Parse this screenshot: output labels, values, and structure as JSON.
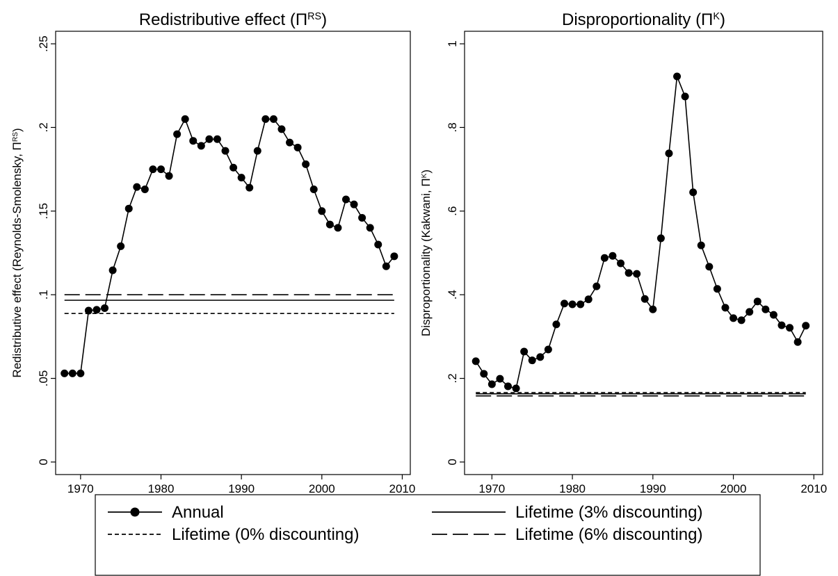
{
  "chart_data": [
    {
      "type": "line",
      "title": [
        {
          "text": "Redistributive effect (Π"
        },
        {
          "text": "RS",
          "superscript": true
        },
        {
          "text": ")"
        }
      ],
      "y_label": [
        {
          "text": "Redistributive effect (Reynolds-Smolensky, Π"
        },
        {
          "text": "RS",
          "superscript": true
        },
        {
          "text": ")"
        }
      ],
      "x": [
        1968,
        1969,
        1970,
        1971,
        1972,
        1973,
        1974,
        1975,
        1976,
        1977,
        1978,
        1979,
        1980,
        1981,
        1982,
        1983,
        1984,
        1985,
        1986,
        1987,
        1988,
        1989,
        1990,
        1991,
        1992,
        1993,
        1994,
        1995,
        1996,
        1997,
        1998,
        1999,
        2000,
        2001,
        2002,
        2003,
        2004,
        2005,
        2006,
        2007,
        2008,
        2009
      ],
      "series": [
        {
          "values": [
            0.053,
            0.053,
            0.053,
            0.0905,
            0.091,
            0.092,
            0.1146,
            0.129,
            0.1515,
            0.1644,
            0.163,
            0.175,
            0.175,
            0.171,
            0.196,
            0.205,
            0.192,
            0.189,
            0.193,
            0.193,
            0.186,
            0.176,
            0.17,
            0.164,
            0.186,
            0.205,
            0.205,
            0.199,
            0.191,
            0.188,
            0.178,
            0.163,
            0.15,
            0.142,
            0.14,
            0.157,
            0.154,
            0.146,
            0.14,
            0.13,
            0.117,
            0.123
          ]
        },
        {
          "value": 0.0967
        },
        {
          "value": 0.0888
        },
        {
          "value": 0.1
        }
      ],
      "xlim": [
        1966.9,
        2011
      ],
      "xticks": [
        1970,
        1980,
        1990,
        2000,
        2010
      ],
      "ylim": [
        -0.0075,
        0.2575
      ],
      "yticks": [
        0,
        {
          "value": 0.05,
          "label": ".05"
        },
        {
          "value": 0.1,
          "label": ".1"
        },
        {
          "value": 0.15,
          "label": ".15"
        },
        {
          "value": 0.2,
          "label": ".2"
        },
        {
          "value": 0.25,
          "label": ".25"
        }
      ]
    },
    {
      "type": "line",
      "title": [
        {
          "text": "Disproportionality (Π"
        },
        {
          "text": "K",
          "superscript": true
        },
        {
          "text": ")"
        }
      ],
      "y_label": [
        {
          "text": "Disproportionality (Kakwani, Π"
        },
        {
          "text": "K",
          "superscript": true
        },
        {
          "text": ")"
        }
      ],
      "x": [
        1968,
        1969,
        1970,
        1971,
        1972,
        1973,
        1974,
        1975,
        1976,
        1977,
        1978,
        1979,
        1980,
        1981,
        1982,
        1983,
        1984,
        1985,
        1986,
        1987,
        1988,
        1989,
        1990,
        1991,
        1992,
        1993,
        1994,
        1995,
        1996,
        1997,
        1998,
        1999,
        2000,
        2001,
        2002,
        2003,
        2004,
        2005,
        2006,
        2007,
        2008,
        2009
      ],
      "series": [
        {
          "values": [
            0.241,
            0.211,
            0.186,
            0.199,
            0.181,
            0.176,
            0.264,
            0.243,
            0.251,
            0.269,
            0.329,
            0.379,
            0.377,
            0.377,
            0.389,
            0.42,
            0.488,
            0.493,
            0.475,
            0.452,
            0.45,
            0.39,
            0.365,
            0.535,
            0.738,
            0.922,
            0.874,
            0.645,
            0.518,
            0.467,
            0.414,
            0.369,
            0.344,
            0.339,
            0.359,
            0.384,
            0.365,
            0.352,
            0.327,
            0.321,
            0.287,
            0.326
          ]
        },
        {
          "value": 0.163
        },
        {
          "value": 0.166
        },
        {
          "value": 0.158
        }
      ],
      "xlim": [
        1966.6,
        2011.1
      ],
      "xticks": [
        1970,
        1980,
        1990,
        2000,
        2010
      ],
      "ylim": [
        -0.03,
        1.03
      ],
      "yticks": [
        0,
        {
          "value": 0.2,
          "label": ".2"
        },
        {
          "value": 0.4,
          "label": ".4"
        },
        {
          "value": 0.6,
          "label": ".6"
        },
        {
          "value": 0.8,
          "label": ".8"
        },
        1
      ]
    }
  ],
  "legend": [
    {
      "name": "Annual",
      "line": "solid",
      "marker": "circle",
      "color": "#000000"
    },
    {
      "name": "Lifetime (3% discounting)",
      "line": "solid",
      "color": "#000000"
    },
    {
      "name": "Lifetime (0% discounting)",
      "line": "dash",
      "color": "#000000"
    },
    {
      "name": "Lifetime (6% discounting)",
      "line": "longdash",
      "color": "#000000"
    }
  ]
}
